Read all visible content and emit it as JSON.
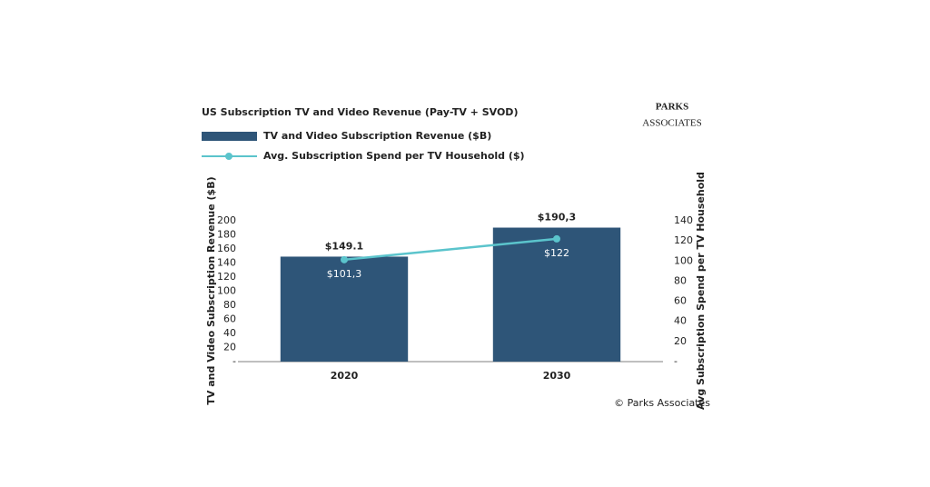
{
  "chart_data": {
    "type": "bar-line",
    "title": "US Subscription TV and Video Revenue (Pay-TV + SVOD)",
    "logo": [
      "PARKS",
      "ASSOCIATES"
    ],
    "source": "© Parks Associates",
    "categories": [
      "2020",
      "2030"
    ],
    "series": [
      {
        "name": "TV and Video Subscription Revenue ($B)",
        "type": "bar",
        "color": "#2e5578",
        "values": [
          149.1,
          190.3
        ],
        "value_labels": [
          "$149.1",
          "$190,3"
        ]
      },
      {
        "name": "Avg. Subscription Spend per TV Household ($)",
        "type": "line",
        "color": "#5bc4cc",
        "axis": "y2",
        "values": [
          101.3,
          122
        ],
        "value_labels": [
          "$101,3",
          "$122"
        ]
      }
    ],
    "ylabel": "TV and Video Subscription Revenue ($B)",
    "y2label": "Avg Subscription Spend per TV Household",
    "ylim": [
      0,
      200
    ],
    "yticks": [
      {
        "value": 0,
        "label": "-"
      },
      20,
      40,
      60,
      80,
      100,
      120,
      140,
      160,
      180,
      200
    ],
    "y2lim": [
      0,
      140
    ],
    "y2ticks": [
      {
        "value": 0,
        "label": "-"
      },
      20,
      40,
      60,
      80,
      100,
      120,
      140
    ]
  }
}
